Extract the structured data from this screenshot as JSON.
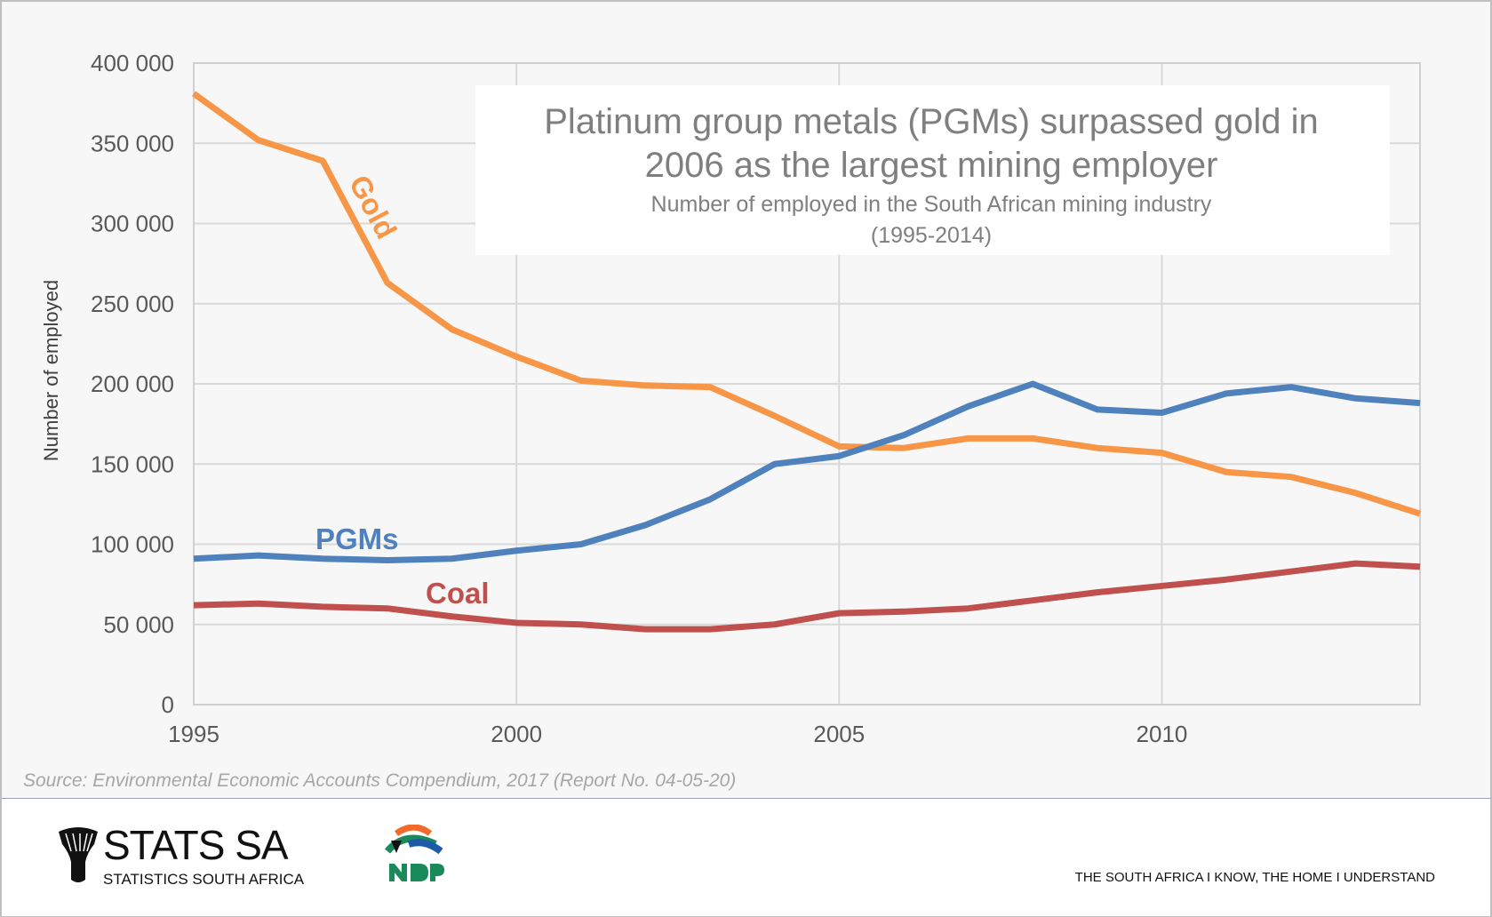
{
  "chart_data": {
    "type": "line",
    "title": "Platinum group metals (PGMs) surpassed gold in 2006 as the largest mining employer",
    "title_lines": [
      "Platinum group metals (PGMs) surpassed gold in",
      "2006 as the largest mining employer"
    ],
    "subtitle_lines": [
      "Number of employed in the South African mining industry",
      "(1995-2014)"
    ],
    "xlabel": "",
    "ylabel": "Number of employed",
    "x": [
      1995,
      1996,
      1997,
      1998,
      1999,
      2000,
      2001,
      2002,
      2003,
      2004,
      2005,
      2006,
      2007,
      2008,
      2009,
      2010,
      2011,
      2012,
      2013,
      2014
    ],
    "xlim": [
      1995,
      2014
    ],
    "ylim": [
      0,
      400000
    ],
    "x_ticks": [
      "1995",
      "2000",
      "2005",
      "2010"
    ],
    "y_ticks": [
      "0",
      "50 000",
      "100 000",
      "150 000",
      "200 000",
      "250 000",
      "300 000",
      "350 000",
      "400 000"
    ],
    "grid": true,
    "legend": "inline labels",
    "series": [
      {
        "name": "Gold",
        "color": "#f79646",
        "values": [
          381000,
          352000,
          339000,
          263000,
          234000,
          217000,
          202000,
          199000,
          198000,
          180000,
          161000,
          160000,
          166000,
          166000,
          160000,
          157000,
          145000,
          142000,
          132000,
          119000
        ]
      },
      {
        "name": "PGMs",
        "color": "#4f81bd",
        "values": [
          91000,
          93000,
          91000,
          90000,
          91000,
          96000,
          100000,
          112000,
          128000,
          150000,
          155000,
          168000,
          186000,
          200000,
          184000,
          182000,
          194000,
          198000,
          191000,
          188000
        ]
      },
      {
        "name": "Coal",
        "color": "#c0504d",
        "values": [
          62000,
          63000,
          61000,
          60000,
          55000,
          51000,
          50000,
          47000,
          47000,
          50000,
          57000,
          58000,
          60000,
          65000,
          70000,
          74000,
          78000,
          83000,
          88000,
          86000
        ]
      }
    ]
  },
  "source": "Source: Environmental Economic Accounts Compendium, 2017 (Report No. 04-05-20)",
  "footer": {
    "logo_name": "STATS SA",
    "logo_sub": "STATISTICS SOUTH AFRICA",
    "ndp_logo": "NDP 2030",
    "tagline": "THE SOUTH AFRICA I KNOW, THE HOME I UNDERSTAND"
  }
}
